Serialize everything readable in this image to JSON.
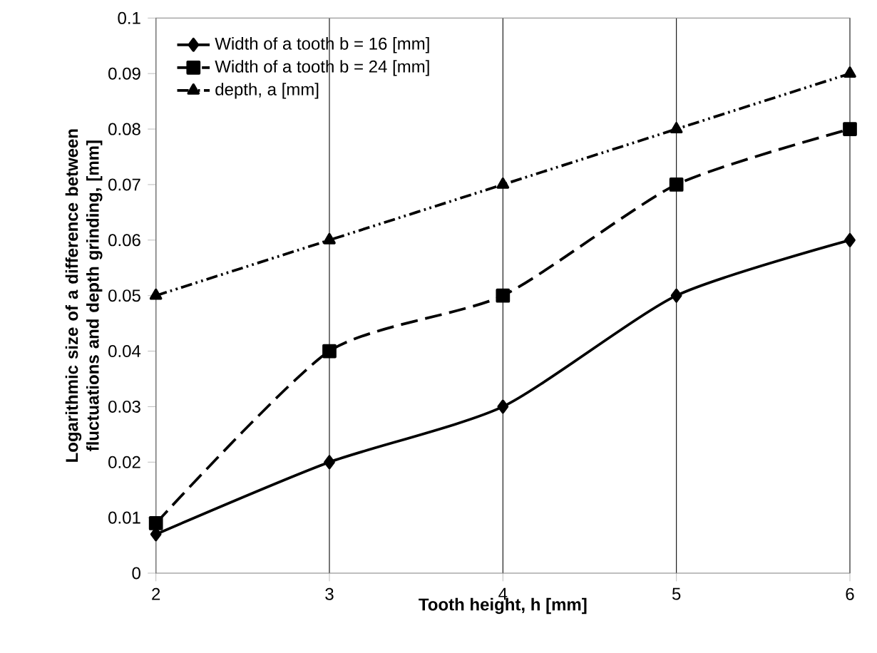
{
  "chart_data": {
    "type": "line",
    "xlabel": "Tooth height, h [mm]",
    "ylabel": "Logarithmic size of a difference between fluctuations and depth grinding, [mm]",
    "x": [
      2,
      3,
      4,
      5,
      6
    ],
    "series": [
      {
        "name": "Width of a tooth b = 16 [mm]",
        "color": "#000000",
        "values": [
          0.007,
          0.02,
          0.03,
          0.05,
          0.06
        ],
        "marker": "diamond",
        "line_style": "solid"
      },
      {
        "name": "Width of a tooth b = 24 [mm]",
        "color": "#000000",
        "values": [
          0.009,
          0.04,
          0.05,
          0.07,
          0.08
        ],
        "marker": "square",
        "line_style": "dashed"
      },
      {
        "name": "depth, a [mm]",
        "color": "#000000",
        "values": [
          0.05,
          0.06,
          0.07,
          0.08,
          0.09
        ],
        "marker": "triangle",
        "line_style": "dashdotdotted"
      }
    ],
    "xlim": [
      2,
      6
    ],
    "xticks": [
      2,
      3,
      4,
      5,
      6
    ],
    "ylim": [
      0,
      0.1
    ],
    "yticks": [
      0,
      0.01,
      0.02,
      0.03,
      0.04,
      0.05,
      0.06,
      0.07,
      0.08,
      0.09,
      0.1
    ],
    "grid": "x",
    "legend": "top left"
  }
}
